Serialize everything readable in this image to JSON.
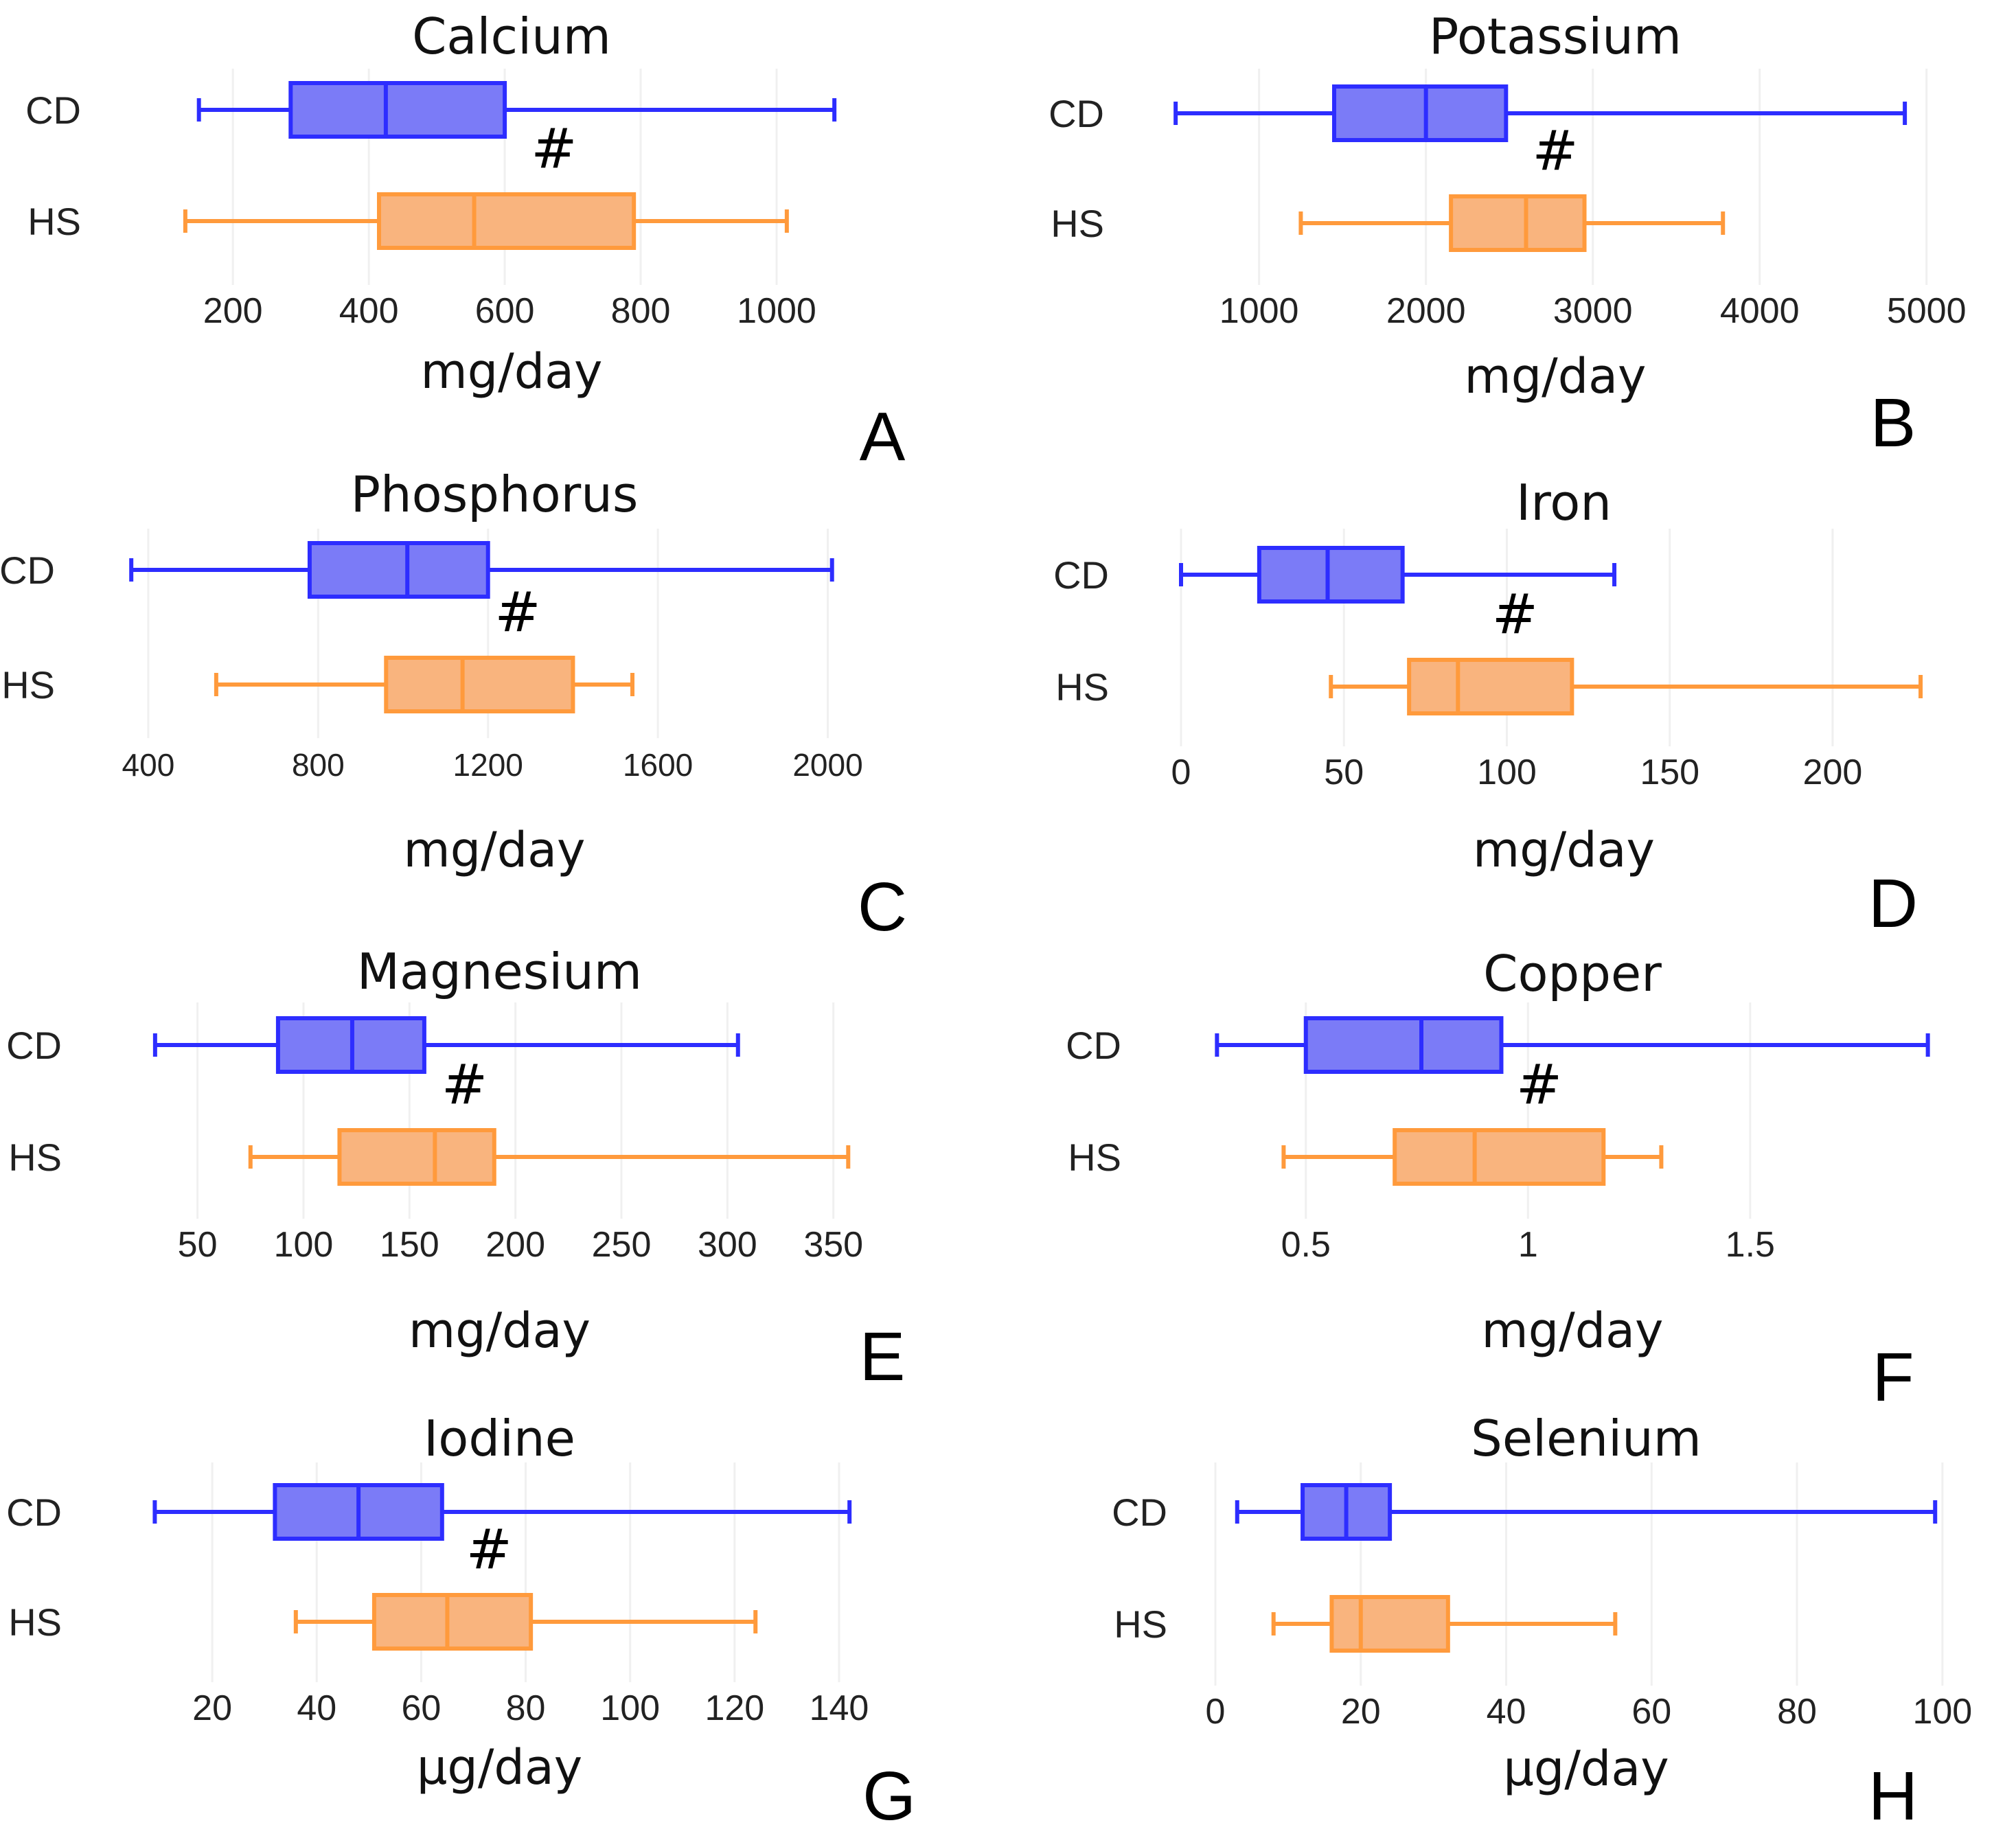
{
  "colors": {
    "CD": "#2d2dff",
    "HS": "#ff9a3c",
    "CD_fill": "#7b7bf7",
    "HS_fill": "#f9b47e"
  },
  "chart_data": [
    {
      "type": "box",
      "panel": "A",
      "title": "Calcium",
      "xlabel": "mg/day",
      "xlim": [
        120,
        1100
      ],
      "ticks": [
        200,
        400,
        600,
        800,
        1000
      ],
      "tick_labels": [
        "200",
        "400",
        "600",
        "800",
        "1000"
      ],
      "groups": [
        {
          "name": "CD",
          "min": 150,
          "q1": 285,
          "median": 425,
          "q3": 600,
          "max": 1085
        },
        {
          "name": "HS",
          "min": 130,
          "q1": 415,
          "median": 555,
          "q3": 790,
          "max": 1015
        }
      ],
      "annotation": "#"
    },
    {
      "type": "box",
      "panel": "B",
      "title": "Potassium",
      "xlabel": "mg/day",
      "xlim": [
        450,
        5100
      ],
      "ticks": [
        1000,
        2000,
        3000,
        4000,
        5000
      ],
      "tick_labels": [
        "1000",
        "2000",
        "3000",
        "4000",
        "5000"
      ],
      "groups": [
        {
          "name": "CD",
          "min": 500,
          "q1": 1450,
          "median": 2000,
          "q3": 2480,
          "max": 4870
        },
        {
          "name": "HS",
          "min": 1250,
          "q1": 2150,
          "median": 2600,
          "q3": 2950,
          "max": 3780
        }
      ],
      "annotation": "#"
    },
    {
      "type": "box",
      "panel": "C",
      "title": "Phosphorus",
      "xlabel": "mg/day",
      "xlim": [
        350,
        2080
      ],
      "ticks": [
        400,
        800,
        1200,
        1600,
        2000
      ],
      "tick_labels": [
        "400",
        "800",
        "1200",
        "1600",
        "2000"
      ],
      "groups": [
        {
          "name": "CD",
          "min": 360,
          "q1": 780,
          "median": 1010,
          "q3": 1200,
          "max": 2010
        },
        {
          "name": "HS",
          "min": 560,
          "q1": 960,
          "median": 1140,
          "q3": 1400,
          "max": 1540
        }
      ],
      "annotation": "#"
    },
    {
      "type": "box",
      "panel": "D",
      "title": "Iron",
      "xlabel": "mg/day",
      "xlim": [
        0,
        235
      ],
      "ticks": [
        0,
        50,
        100,
        150,
        200
      ],
      "tick_labels": [
        "0",
        "50",
        "100",
        "150",
        "200"
      ],
      "groups": [
        {
          "name": "CD",
          "min": 0,
          "q1": 24,
          "median": 45,
          "q3": 68,
          "max": 133
        },
        {
          "name": "HS",
          "min": 46,
          "q1": 70,
          "median": 85,
          "q3": 120,
          "max": 227
        }
      ],
      "annotation": "#"
    },
    {
      "type": "box",
      "panel": "E",
      "title": "Magnesium",
      "xlabel": "mg/day",
      "xlim": [
        20,
        365
      ],
      "ticks": [
        50,
        100,
        150,
        200,
        250,
        300,
        350
      ],
      "tick_labels": [
        "50",
        "100",
        "150",
        "200",
        "250",
        "300",
        "350"
      ],
      "groups": [
        {
          "name": "CD",
          "min": 30,
          "q1": 88,
          "median": 123,
          "q3": 157,
          "max": 305
        },
        {
          "name": "HS",
          "min": 75,
          "q1": 117,
          "median": 162,
          "q3": 190,
          "max": 357
        }
      ],
      "annotation": "#"
    },
    {
      "type": "box",
      "panel": "F",
      "title": "Copper",
      "xlabel": "mg/day",
      "xlim": [
        0.25,
        1.95
      ],
      "ticks": [
        0.5,
        1,
        1.5
      ],
      "tick_labels": [
        "0.5",
        "1",
        "1.5"
      ],
      "groups": [
        {
          "name": "CD",
          "min": 0.3,
          "q1": 0.5,
          "median": 0.76,
          "q3": 0.94,
          "max": 1.9
        },
        {
          "name": "HS",
          "min": 0.45,
          "q1": 0.7,
          "median": 0.88,
          "q3": 1.17,
          "max": 1.3
        }
      ],
      "annotation": "#"
    },
    {
      "type": "box",
      "panel": "G",
      "title": "Iodine",
      "xlabel": "μg/day",
      "xlim": [
        5,
        145
      ],
      "ticks": [
        20,
        40,
        60,
        80,
        100,
        120,
        140
      ],
      "tick_labels": [
        "20",
        "40",
        "60",
        "80",
        "100",
        "120",
        "140"
      ],
      "groups": [
        {
          "name": "CD",
          "min": 9,
          "q1": 32,
          "median": 48,
          "q3": 64,
          "max": 142
        },
        {
          "name": "HS",
          "min": 36,
          "q1": 51,
          "median": 65,
          "q3": 81,
          "max": 124
        }
      ],
      "annotation": "#"
    },
    {
      "type": "box",
      "panel": "H",
      "title": "Selenium",
      "xlabel": "μg/day",
      "xlim": [
        0,
        102
      ],
      "ticks": [
        0,
        20,
        40,
        60,
        80,
        100
      ],
      "tick_labels": [
        "0",
        "20",
        "40",
        "60",
        "80",
        "100"
      ],
      "groups": [
        {
          "name": "CD",
          "min": 3,
          "q1": 12,
          "median": 18,
          "q3": 24,
          "max": 99
        },
        {
          "name": "HS",
          "min": 8,
          "q1": 16,
          "median": 20,
          "q3": 32,
          "max": 55
        }
      ],
      "annotation": ""
    }
  ]
}
